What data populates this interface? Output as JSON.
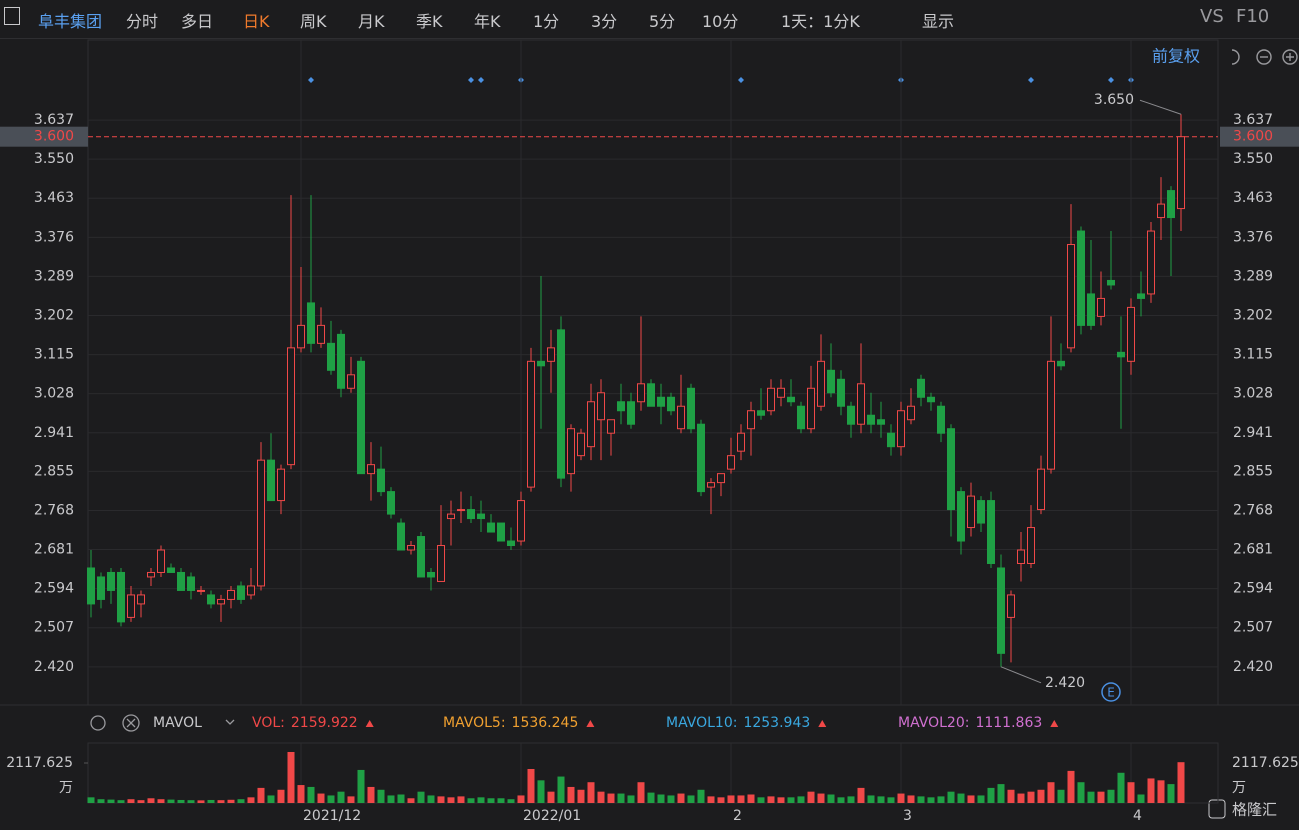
{
  "toolbar": {
    "stock": "阜丰集团",
    "tabs": [
      "分时",
      "多日",
      "日K",
      "周K",
      "月K",
      "季K",
      "年K",
      "1分",
      "3分",
      "5分",
      "10分"
    ],
    "period": "1天：1分K",
    "display": "显示",
    "compare": "VS",
    "f10": "F10"
  },
  "adjust": "前复权",
  "brand": "格隆汇",
  "chart_data": {
    "type": "candlestick",
    "categories": [
      null,
      null,
      null,
      null,
      null,
      null,
      null,
      null,
      null,
      null,
      null,
      null,
      null,
      null,
      null,
      null,
      null,
      null,
      null,
      null,
      null,
      "2021/12",
      null,
      null,
      null,
      null,
      null,
      null,
      null,
      null,
      null,
      null,
      null,
      null,
      null,
      null,
      null,
      null,
      null,
      null,
      null,
      null,
      null,
      "2022/01",
      null,
      null,
      null,
      null,
      null,
      null,
      null,
      null,
      null,
      null,
      null,
      null,
      null,
      null,
      null,
      null,
      null,
      null,
      null,
      null,
      "2",
      null,
      null,
      null,
      null,
      null,
      null,
      null,
      null,
      null,
      null,
      null,
      null,
      null,
      null,
      null,
      null,
      "3",
      null,
      null,
      null,
      null,
      null,
      null,
      null,
      null,
      null,
      null,
      null,
      null,
      null,
      null,
      null,
      null,
      null,
      null,
      null,
      null,
      null,
      null,
      "4",
      null,
      null,
      null,
      null,
      null
    ],
    "open": [
      2.64,
      2.62,
      2.63,
      2.63,
      2.53,
      2.56,
      2.62,
      2.63,
      2.64,
      2.63,
      2.62,
      2.59,
      2.58,
      2.56,
      2.57,
      2.6,
      2.58,
      2.6,
      2.88,
      2.79,
      2.87,
      3.13,
      3.23,
      3.14,
      3.14,
      3.16,
      3.04,
      3.1,
      2.85,
      2.86,
      2.81,
      2.74,
      2.68,
      2.71,
      2.63,
      2.61,
      2.75,
      2.77,
      2.77,
      2.76,
      2.74,
      2.74,
      2.7,
      2.7,
      2.82,
      3.1,
      3.1,
      3.17,
      2.85,
      2.89,
      2.91,
      2.97,
      2.94,
      3.01,
      3.01,
      3.01,
      3.05,
      3.02,
      3.02,
      2.95,
      3.04,
      2.96,
      2.82,
      2.83,
      2.86,
      2.9,
      2.95,
      2.99,
      2.99,
      3.02,
      3.02,
      3.0,
      2.95,
      3.0,
      3.08,
      3.06,
      3.0,
      2.96,
      2.98,
      2.97,
      2.94,
      2.91,
      2.97,
      3.06,
      3.02,
      3.0,
      2.95,
      2.81,
      2.73,
      2.79,
      2.79,
      2.64,
      2.53,
      2.65,
      2.65,
      2.77,
      2.86,
      3.1,
      3.13,
      3.39,
      3.25,
      3.2,
      3.28,
      3.12,
      3.1,
      3.25,
      3.25,
      3.42,
      3.48,
      3.44
    ],
    "high": [
      2.68,
      2.63,
      2.64,
      2.64,
      2.6,
      2.59,
      2.64,
      2.69,
      2.65,
      2.64,
      2.63,
      2.6,
      2.59,
      2.58,
      2.6,
      2.61,
      2.64,
      2.92,
      2.94,
      2.87,
      3.47,
      3.31,
      3.47,
      3.22,
      3.19,
      3.17,
      3.11,
      3.11,
      2.92,
      2.91,
      2.82,
      2.75,
      2.7,
      2.72,
      2.64,
      2.78,
      2.79,
      2.81,
      2.8,
      2.79,
      2.76,
      2.74,
      2.73,
      2.81,
      3.13,
      3.29,
      3.17,
      3.2,
      2.96,
      2.95,
      3.05,
      3.06,
      2.97,
      3.05,
      3.03,
      3.2,
      3.06,
      3.05,
      3.03,
      3.07,
      3.05,
      2.97,
      2.84,
      2.85,
      2.93,
      2.96,
      3.01,
      3.04,
      3.06,
      3.06,
      3.06,
      3.01,
      3.09,
      3.16,
      3.14,
      3.08,
      3.01,
      3.14,
      3.03,
      3.01,
      2.96,
      3.01,
      3.04,
      3.07,
      3.03,
      3.01,
      2.96,
      2.82,
      2.83,
      2.8,
      2.81,
      2.67,
      2.59,
      2.72,
      2.78,
      2.89,
      3.2,
      3.14,
      3.45,
      3.4,
      3.37,
      3.3,
      3.39,
      3.2,
      3.24,
      3.3,
      3.41,
      3.51,
      3.49,
      3.65
    ],
    "low": [
      2.53,
      2.55,
      2.56,
      2.51,
      2.52,
      2.53,
      2.6,
      2.62,
      2.63,
      2.59,
      2.57,
      2.58,
      2.55,
      2.52,
      2.55,
      2.56,
      2.57,
      2.59,
      2.8,
      2.76,
      2.86,
      3.12,
      3.12,
      3.13,
      3.07,
      3.02,
      3.03,
      2.85,
      2.79,
      2.8,
      2.75,
      2.68,
      2.67,
      2.62,
      2.59,
      2.61,
      2.69,
      2.74,
      2.74,
      2.72,
      2.72,
      2.7,
      2.68,
      2.69,
      2.81,
      2.95,
      3.03,
      2.82,
      2.81,
      2.88,
      2.88,
      2.88,
      2.89,
      2.96,
      2.95,
      2.99,
      3.0,
      2.96,
      2.98,
      2.94,
      2.94,
      2.8,
      2.76,
      2.8,
      2.85,
      2.88,
      2.89,
      2.97,
      2.98,
      3.0,
      3.0,
      2.94,
      2.94,
      2.99,
      3.02,
      2.98,
      2.93,
      2.94,
      2.94,
      2.93,
      2.89,
      2.89,
      2.96,
      3.0,
      2.99,
      2.92,
      2.71,
      2.67,
      2.71,
      2.72,
      2.64,
      2.42,
      2.43,
      2.61,
      2.64,
      2.76,
      2.85,
      3.08,
      3.12,
      3.16,
      3.17,
      3.18,
      3.26,
      2.95,
      3.07,
      3.2,
      3.23,
      3.37,
      3.29,
      3.39
    ],
    "close": [
      2.56,
      2.57,
      2.59,
      2.52,
      2.58,
      2.58,
      2.63,
      2.68,
      2.63,
      2.59,
      2.59,
      2.59,
      2.56,
      2.57,
      2.59,
      2.57,
      2.6,
      2.88,
      2.79,
      2.86,
      3.13,
      3.18,
      3.14,
      3.18,
      3.08,
      3.04,
      3.07,
      2.85,
      2.87,
      2.81,
      2.76,
      2.68,
      2.69,
      2.62,
      2.62,
      2.69,
      2.76,
      2.77,
      2.75,
      2.75,
      2.72,
      2.7,
      2.69,
      2.79,
      3.1,
      3.09,
      3.13,
      2.84,
      2.95,
      2.94,
      3.01,
      3.03,
      2.97,
      2.99,
      2.96,
      3.05,
      3.0,
      3.0,
      2.99,
      3.0,
      2.95,
      2.81,
      2.83,
      2.85,
      2.89,
      2.94,
      2.99,
      2.98,
      3.04,
      3.04,
      3.01,
      2.95,
      3.04,
      3.1,
      3.03,
      3.0,
      2.96,
      3.05,
      2.96,
      2.96,
      2.91,
      2.99,
      3.0,
      3.02,
      3.01,
      2.94,
      2.77,
      2.7,
      2.8,
      2.74,
      2.65,
      2.45,
      2.58,
      2.68,
      2.73,
      2.86,
      3.1,
      3.09,
      3.36,
      3.18,
      3.18,
      3.24,
      3.27,
      3.11,
      3.22,
      3.24,
      3.39,
      3.45,
      3.42,
      3.6
    ],
    "up_color": "#f04848",
    "down_color": "#1fa045",
    "ylim": [
      2.335,
      3.744
    ],
    "yticks": [
      3.637,
      {
        "value": 3.55,
        "label": "3.550"
      },
      3.463,
      3.376,
      3.289,
      3.202,
      3.115,
      3.028,
      2.941,
      2.855,
      2.768,
      2.681,
      2.594,
      2.507,
      {
        "value": 2.42,
        "label": "2.420"
      }
    ],
    "grid": true,
    "last_price": {
      "value": 3.6,
      "label": "3.600"
    },
    "annotations": [
      {
        "value": 3.65,
        "label": "3.650"
      },
      {
        "value": 2.42,
        "label": "2.420"
      }
    ],
    "volume": {
      "indicator": "MAVOL",
      "label": "VOL:",
      "unit": "万",
      "values": [
        300,
        200,
        180,
        150,
        200,
        150,
        250,
        200,
        180,
        160,
        150,
        140,
        160,
        150,
        170,
        200,
        300,
        800,
        400,
        700,
        2700,
        950,
        850,
        500,
        400,
        600,
        350,
        1750,
        850,
        700,
        400,
        450,
        250,
        600,
        400,
        350,
        300,
        350,
        250,
        300,
        250,
        250,
        200,
        400,
        1800,
        1200,
        600,
        1400,
        850,
        700,
        1100,
        600,
        500,
        500,
        400,
        1100,
        550,
        450,
        400,
        500,
        400,
        700,
        350,
        300,
        400,
        400,
        450,
        300,
        350,
        300,
        300,
        350,
        600,
        500,
        450,
        300,
        350,
        800,
        400,
        350,
        300,
        500,
        400,
        350,
        300,
        350,
        600,
        500,
        400,
        400,
        800,
        1000,
        700,
        500,
        600,
        700,
        1100,
        700,
        1700,
        1100,
        600,
        600,
        700,
        1600,
        1100,
        450,
        1300,
        1200,
        1000,
        2159.922
      ],
      "ylim": [
        0,
        3070
      ],
      "yticks": [
        2117.625
      ],
      "averages": [
        {
          "name": "MAVOL5:",
          "value": 1536.245,
          "color": "#f0a030"
        },
        {
          "name": "MAVOL10:",
          "value": 1253.943,
          "color": "#3aa8e0"
        },
        {
          "name": "MAVOL20:",
          "value": 1111.863,
          "color": "#d070d0"
        }
      ]
    }
  }
}
